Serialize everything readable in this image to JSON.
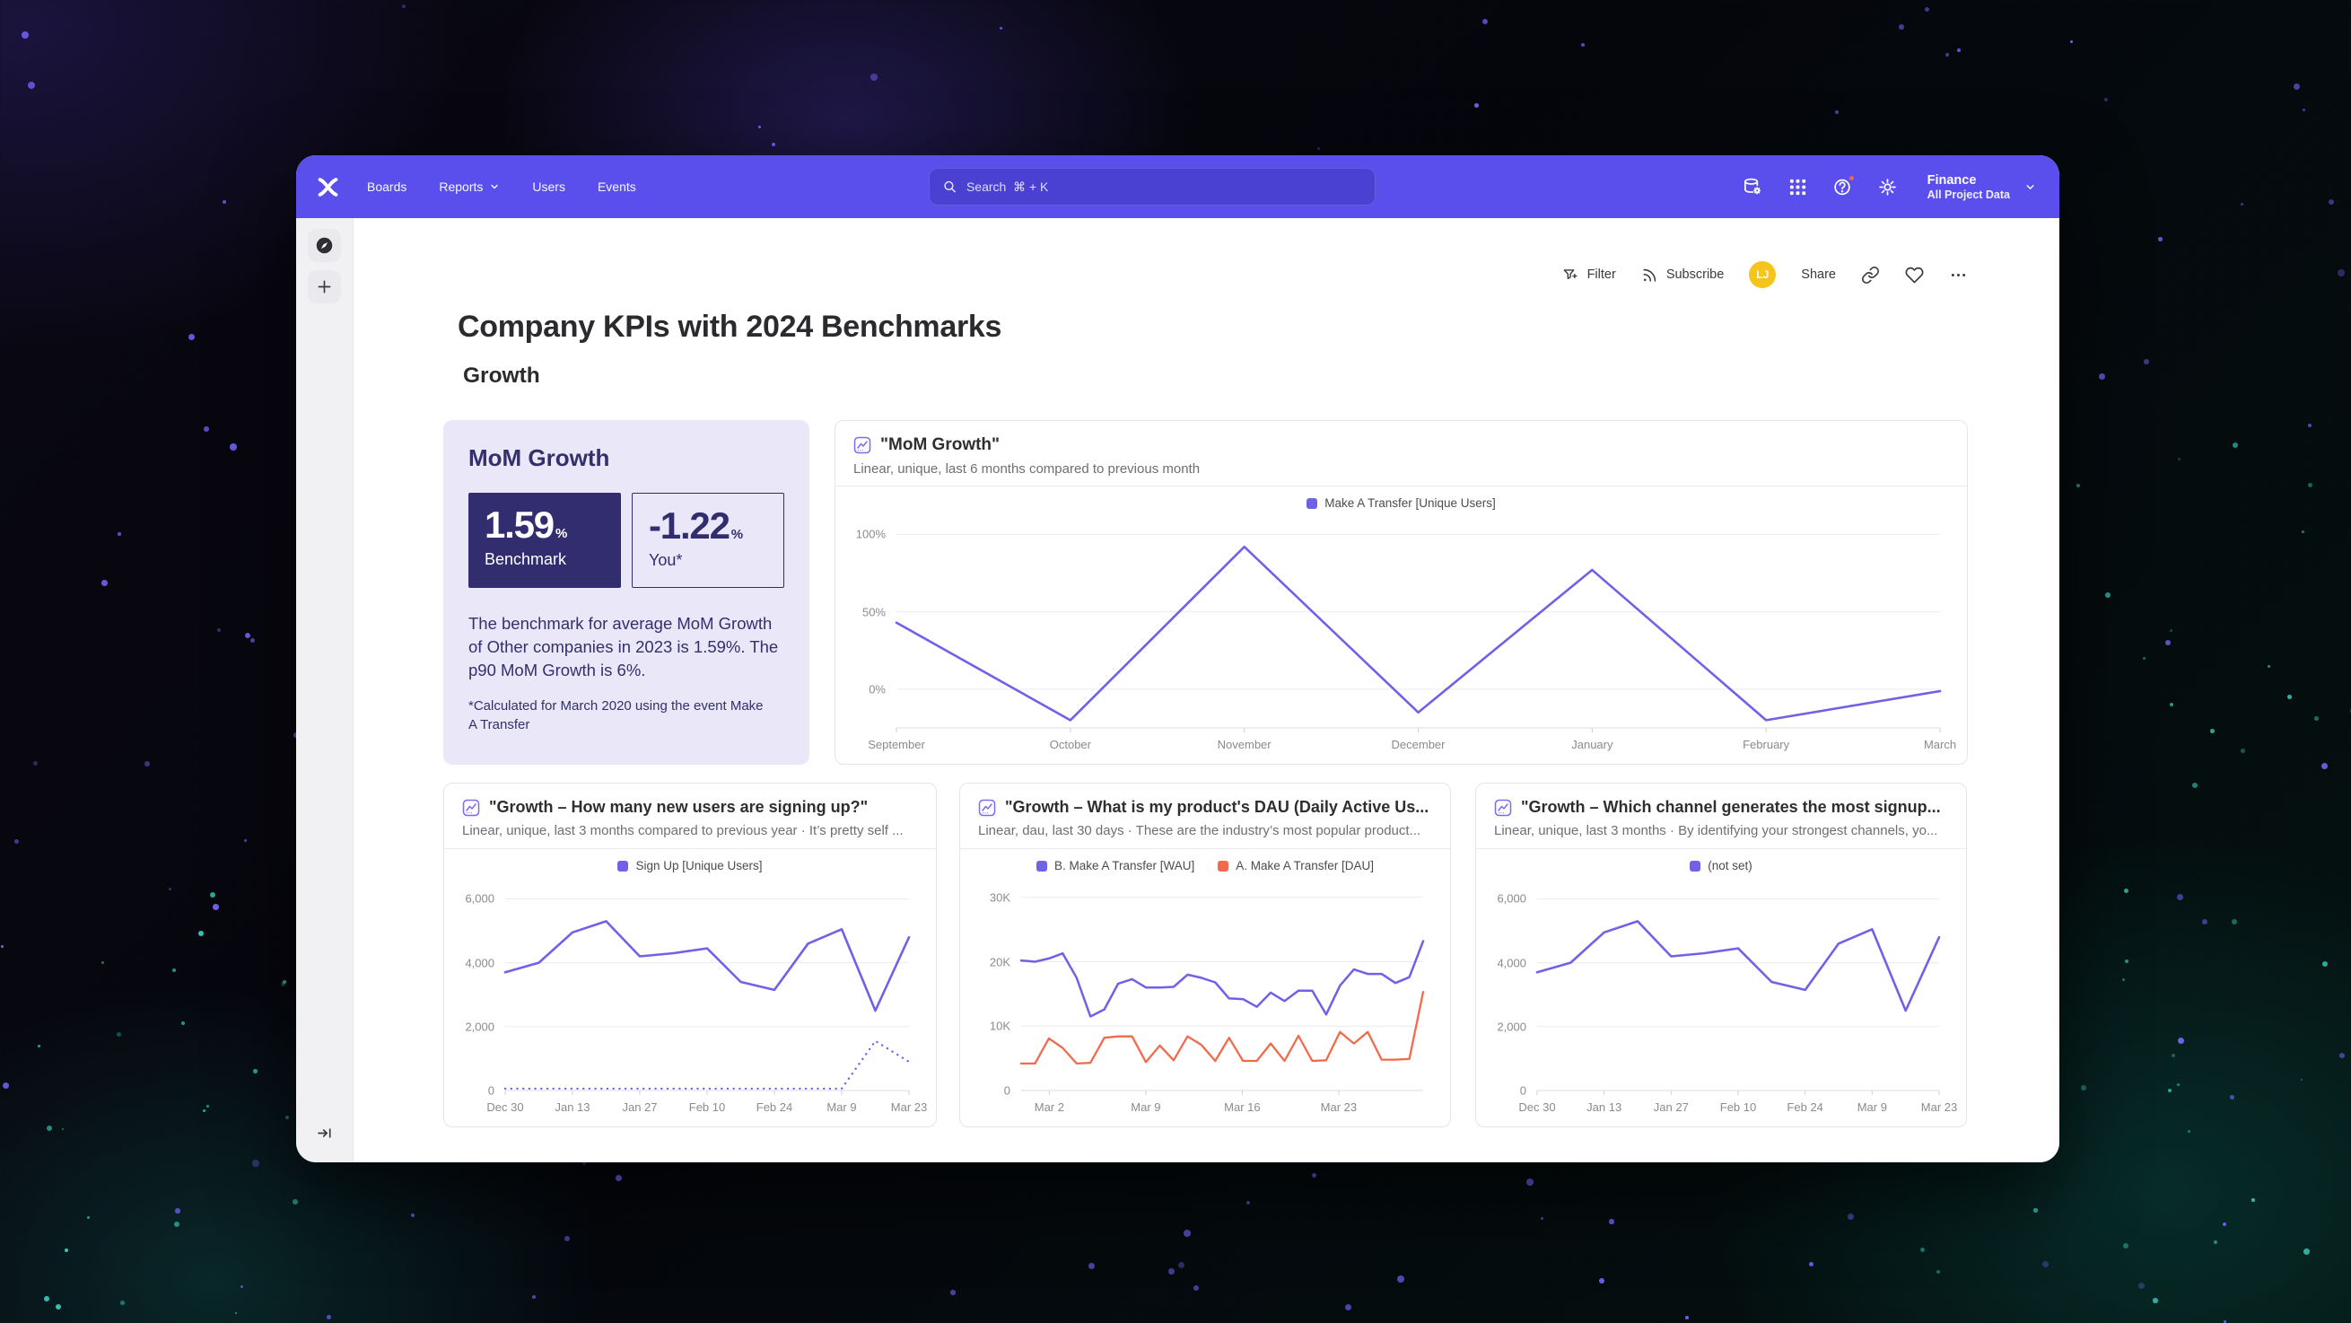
{
  "colors": {
    "nav_purple": "#5A4FEC",
    "search_bg": "#4A40D2",
    "line_purple": "#6F61E8",
    "line_orange": "#F26A4B",
    "navy": "#322D6E",
    "lavender_card": "#E9E7F8",
    "avatar_yellow": "#F5C51D",
    "notification_red": "#F0654C",
    "star_purple": "#6F61F2",
    "star_teal": "#3AD9C4"
  },
  "nav": {
    "items": [
      "Boards",
      "Reports",
      "Users",
      "Events"
    ],
    "search_placeholder": "Search  ⌘ + K",
    "project": {
      "name": "Finance",
      "scope": "All Project Data"
    },
    "icons": [
      "data-sources-icon",
      "apps-grid-icon",
      "help-icon",
      "settings-icon"
    ]
  },
  "rail": {
    "icons": [
      "compass-icon",
      "plus-icon",
      "expand-sidebar-icon"
    ]
  },
  "toolbar": {
    "filter_label": "Filter",
    "subscribe_label": "Subscribe",
    "share_label": "Share",
    "avatar_initials": "LJ",
    "icons": [
      "filter-icon",
      "rss-icon",
      "link-icon",
      "heart-icon",
      "ellipsis-icon"
    ]
  },
  "page": {
    "title": "Company KPIs with 2024 Benchmarks",
    "section": "Growth"
  },
  "benchmark_card": {
    "title": "MoM Growth",
    "benchmark": {
      "value": "1.59",
      "unit": "%",
      "label": "Benchmark"
    },
    "you": {
      "value": "-1.22",
      "unit": "%",
      "label": "You*"
    },
    "description": "The benchmark for average MoM Growth of Other companies in 2023 is 1.59%. The p90 MoM Growth is 6%.",
    "footnote": "*Calculated for March 2020 using the event Make A Transfer"
  },
  "chart_data": [
    {
      "type": "line",
      "title": "\"MoM Growth\"",
      "subtitle": "Linear, unique, last 6 months compared to previous month",
      "legend": [
        {
          "label": "Make A Transfer [Unique Users]",
          "color": "#6F61E8"
        }
      ],
      "ylim": [
        -25,
        106
      ],
      "grid": true,
      "legend_position": "top-center",
      "y_ticks": [
        {
          "value": 100,
          "label": "100%"
        },
        {
          "value": 50,
          "label": "50%"
        },
        {
          "value": 0,
          "label": "0%"
        }
      ],
      "x_ticks": [
        {
          "pos": 0.0,
          "label": "September"
        },
        {
          "pos": 0.1667,
          "label": "October"
        },
        {
          "pos": 0.3333,
          "label": "November"
        },
        {
          "pos": 0.5,
          "label": "December"
        },
        {
          "pos": 0.6667,
          "label": "January"
        },
        {
          "pos": 0.8333,
          "label": "February"
        },
        {
          "pos": 1.0,
          "label": "March"
        }
      ],
      "series": [
        {
          "name": "Make A Transfer [Unique Users]",
          "color": "#6F61E8",
          "width": 2.6,
          "values": [
            43,
            -20,
            92,
            -15,
            77,
            -20,
            -1.22
          ]
        }
      ]
    },
    {
      "type": "line",
      "title": "\"Growth – How many new users are signing up?\"",
      "subtitle": "Linear, unique, last 3 months compared to previous year · It’s pretty self ...",
      "legend": [
        {
          "label": "Sign Up [Unique Users]",
          "color": "#6F61E8"
        }
      ],
      "ylim": [
        0,
        6350
      ],
      "grid": true,
      "legend_position": "top-center",
      "y_ticks": [
        {
          "value": 6000,
          "label": "6,000"
        },
        {
          "value": 4000,
          "label": "4,000"
        },
        {
          "value": 2000,
          "label": "2,000"
        },
        {
          "value": 0,
          "label": "0"
        }
      ],
      "x_ticks": [
        {
          "pos": 0.0,
          "label": "Dec 30"
        },
        {
          "pos": 0.1667,
          "label": "Jan 13"
        },
        {
          "pos": 0.3333,
          "label": "Jan 27"
        },
        {
          "pos": 0.5,
          "label": "Feb 10"
        },
        {
          "pos": 0.6667,
          "label": "Feb 24"
        },
        {
          "pos": 0.8333,
          "label": "Mar 9"
        },
        {
          "pos": 1.0,
          "label": "Mar 23"
        }
      ],
      "series": [
        {
          "name": "Sign Up [Unique Users] — current period",
          "color": "#6F61E8",
          "width": 2.6,
          "values": [
            3700,
            4000,
            4950,
            5300,
            4200,
            4300,
            4450,
            3400,
            3150,
            4600,
            5050,
            2500,
            4800
          ]
        },
        {
          "name": "Sign Up [Unique Users] — previous year",
          "color": "#6F61E8",
          "width": 2.3,
          "dotted": true,
          "values": [
            60,
            60,
            60,
            60,
            60,
            60,
            60,
            60,
            60,
            60,
            60,
            1550,
            900
          ]
        }
      ]
    },
    {
      "type": "line",
      "title": "\"Growth – What is my product's DAU (Daily Active Us...",
      "subtitle": "Linear, dau, last 30 days · These are the industry’s most popular product...",
      "legend": [
        {
          "label": "B. Make A Transfer [WAU]",
          "color": "#6F61E8"
        },
        {
          "label": "A. Make A Transfer [DAU]",
          "color": "#F26A4B"
        }
      ],
      "ylim": [
        0,
        31500
      ],
      "grid": true,
      "legend_position": "top-center",
      "y_ticks": [
        {
          "value": 30000,
          "label": "30K"
        },
        {
          "value": 20000,
          "label": "20K"
        },
        {
          "value": 10000,
          "label": "10K"
        },
        {
          "value": 0,
          "label": "0"
        }
      ],
      "x_ticks": [
        {
          "pos": 0.07,
          "label": "Mar 2"
        },
        {
          "pos": 0.31,
          "label": "Mar 9"
        },
        {
          "pos": 0.55,
          "label": "Mar 16"
        },
        {
          "pos": 0.79,
          "label": "Mar 23"
        }
      ],
      "series": [
        {
          "name": "B. Make A Transfer [WAU]",
          "color": "#6F61E8",
          "width": 2.5,
          "values": [
            20200,
            20000,
            20500,
            21300,
            17500,
            11500,
            12600,
            16600,
            17300,
            16000,
            16000,
            16100,
            18000,
            17500,
            16800,
            14300,
            14200,
            13000,
            15200,
            13900,
            15500,
            15500,
            11800,
            16300,
            18800,
            18100,
            18100,
            16700,
            17600,
            23200
          ]
        },
        {
          "name": "A. Make A Transfer [DAU]",
          "color": "#F26A4B",
          "width": 2.3,
          "values": [
            4200,
            4200,
            8100,
            6600,
            4200,
            4300,
            8200,
            8400,
            8400,
            4400,
            7000,
            4700,
            8400,
            7100,
            4600,
            8200,
            4600,
            4600,
            7300,
            4600,
            8500,
            4600,
            4700,
            9100,
            7300,
            9100,
            4800,
            4800,
            4900,
            15300
          ]
        }
      ]
    },
    {
      "type": "line",
      "title": "\"Growth – Which channel generates the most signup...",
      "subtitle": "Linear, unique, last 3 months · By identifying your strongest channels, yo...",
      "legend": [
        {
          "label": "(not set)",
          "color": "#6F61E8"
        }
      ],
      "ylim": [
        0,
        6350
      ],
      "grid": true,
      "legend_position": "top-center",
      "y_ticks": [
        {
          "value": 6000,
          "label": "6,000"
        },
        {
          "value": 4000,
          "label": "4,000"
        },
        {
          "value": 2000,
          "label": "2,000"
        },
        {
          "value": 0,
          "label": "0"
        }
      ],
      "x_ticks": [
        {
          "pos": 0.0,
          "label": "Dec 30"
        },
        {
          "pos": 0.1667,
          "label": "Jan 13"
        },
        {
          "pos": 0.3333,
          "label": "Jan 27"
        },
        {
          "pos": 0.5,
          "label": "Feb 10"
        },
        {
          "pos": 0.6667,
          "label": "Feb 24"
        },
        {
          "pos": 0.8333,
          "label": "Mar 9"
        },
        {
          "pos": 1.0,
          "label": "Mar 23"
        }
      ],
      "series": [
        {
          "name": "(not set)",
          "color": "#6F61E8",
          "width": 2.6,
          "values": [
            3700,
            4000,
            4950,
            5300,
            4200,
            4300,
            4450,
            3400,
            3150,
            4600,
            5050,
            2500,
            4800
          ]
        }
      ]
    }
  ]
}
